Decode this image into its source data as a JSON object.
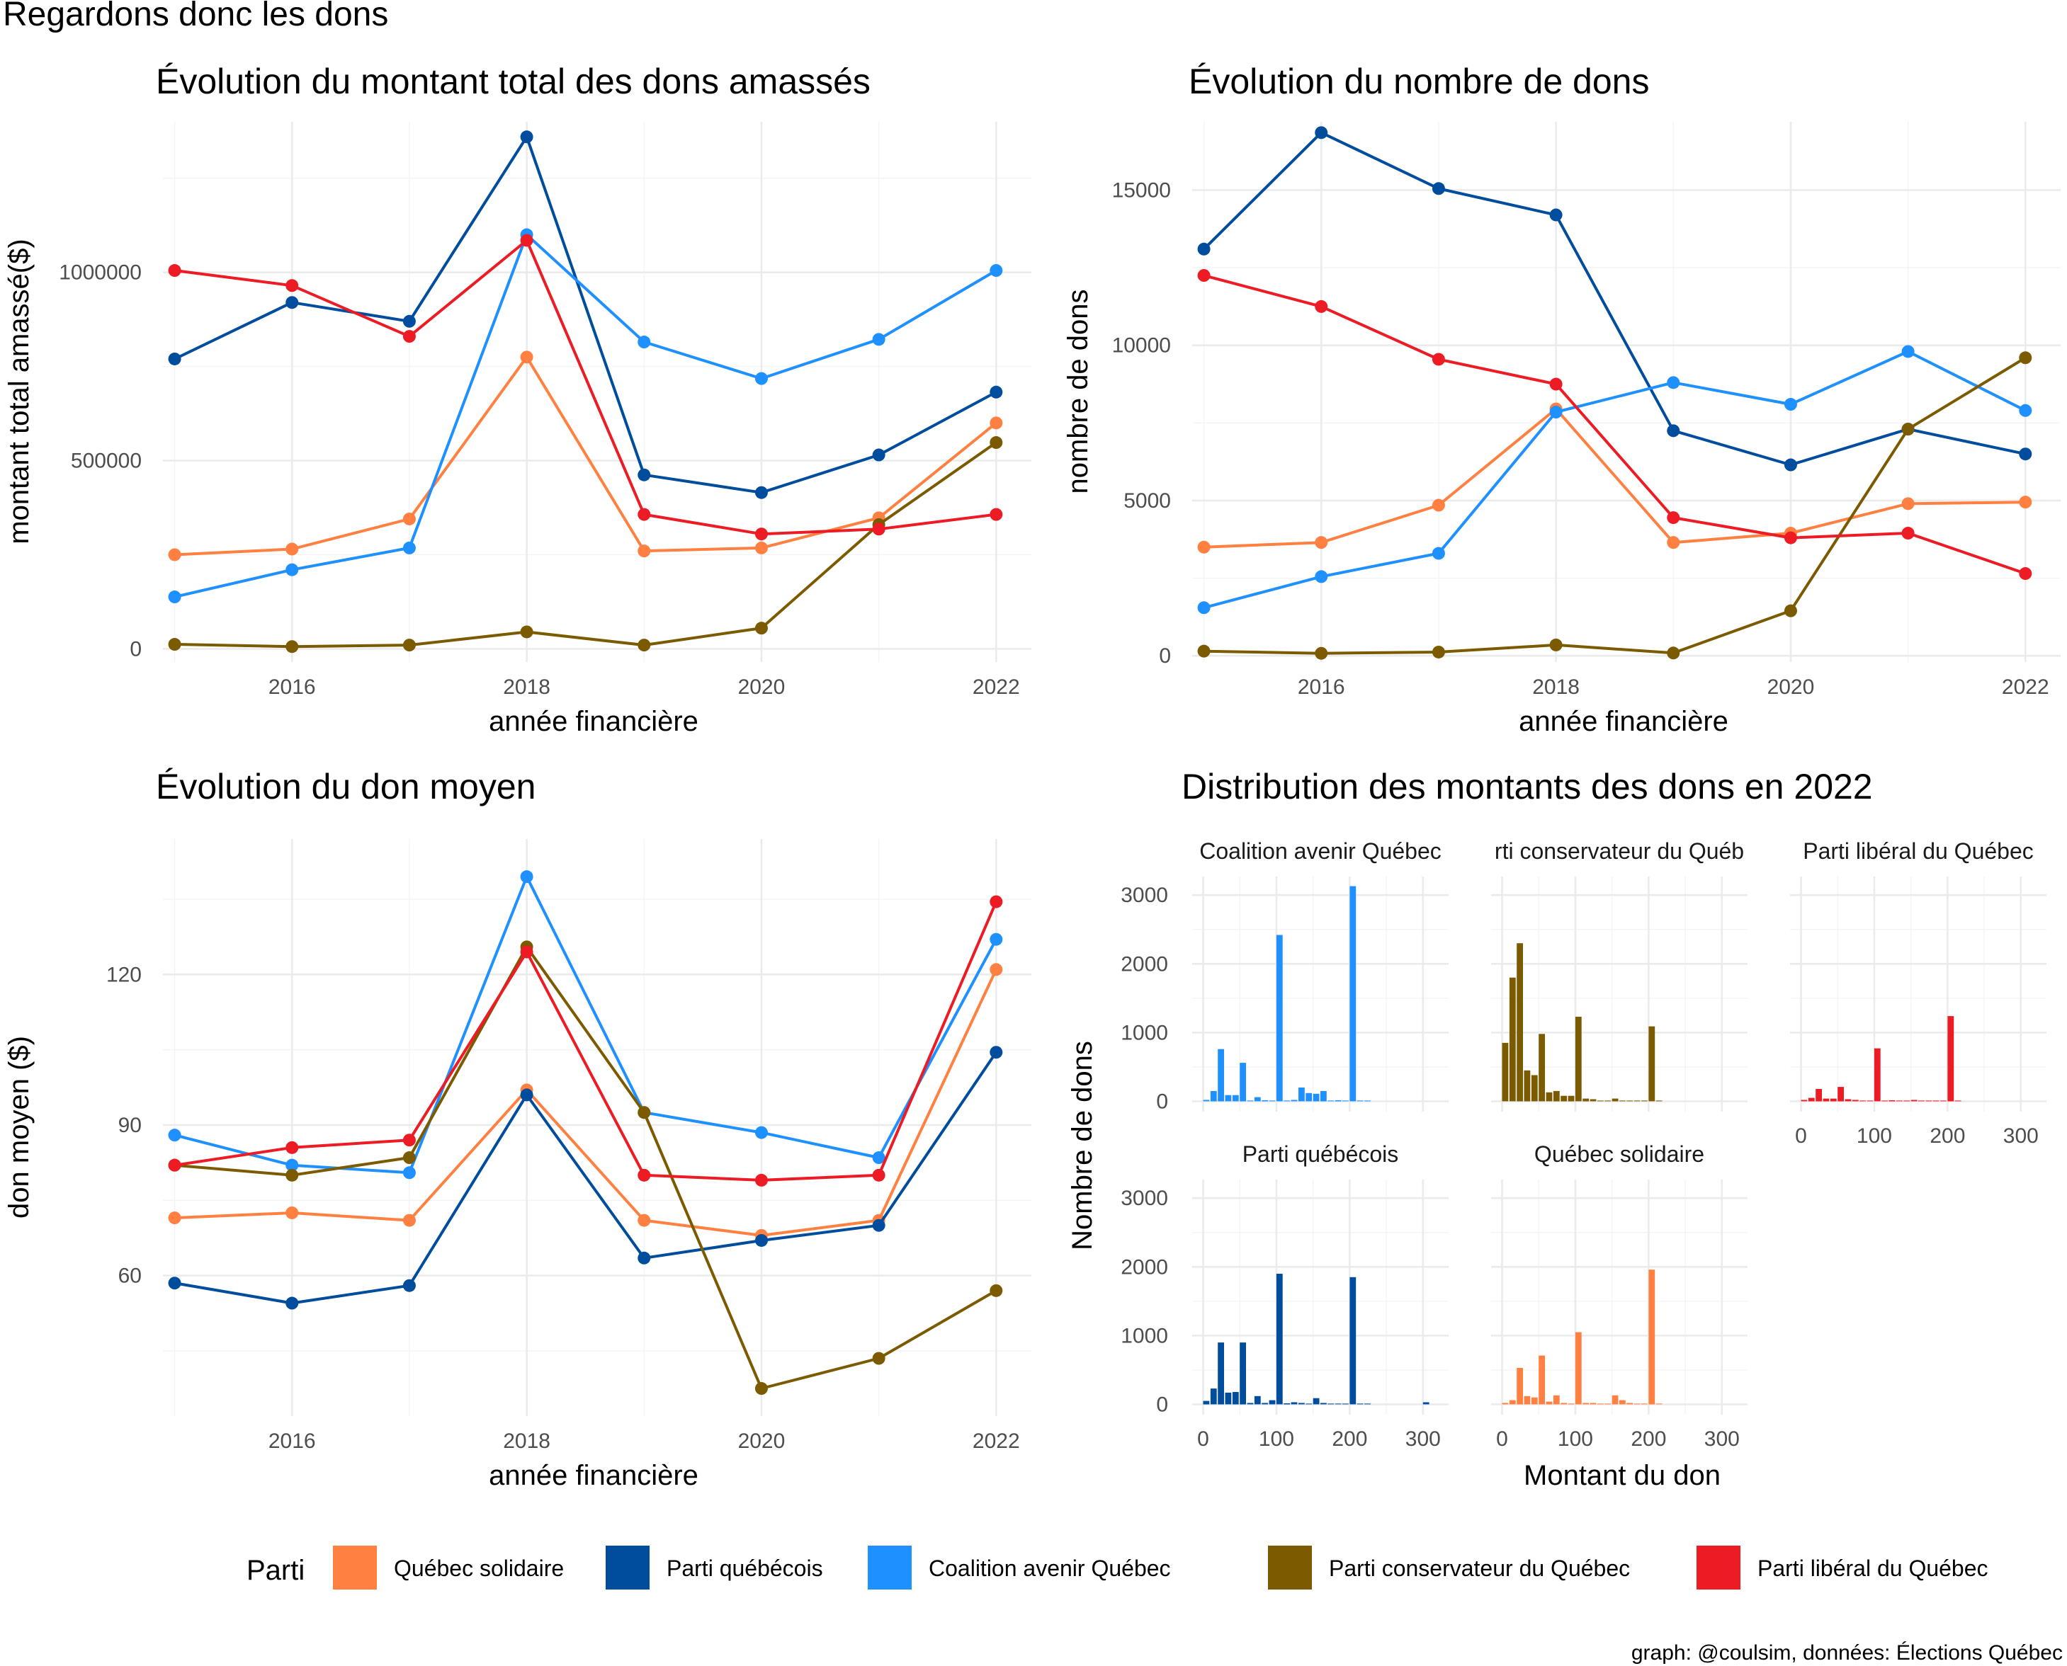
{
  "title": "Regardons donc les dons",
  "caption": "graph: @coulsim, données: Élections Québec",
  "colors": {
    "Québec solidaire": "#FF8040",
    "Parti québécois": "#004C9D",
    "Coalition avenir Québec": "#1E90FF",
    "Parti conservateur du Québec": "#7B5A00",
    "Parti libéral du Québec": "#ED1B24"
  },
  "legend": {
    "title": "Parti",
    "items": [
      "Québec solidaire",
      "Parti québécois",
      "Coalition avenir Québec",
      "Parti conservateur du Québec",
      "Parti libéral du Québec"
    ],
    "position": "bottom"
  },
  "chart_data": [
    {
      "id": "total",
      "type": "line",
      "title": "Évolution du montant total des dons amassés",
      "xlabel": "année financière",
      "ylabel": "montant total amassé($)",
      "x": [
        2015,
        2016,
        2017,
        2018,
        2019,
        2020,
        2021,
        2022
      ],
      "xlim": [
        2014.9,
        2022.3
      ],
      "ylim": [
        -35000,
        1400000
      ],
      "xticks": [
        2016,
        2018,
        2020,
        2022
      ],
      "yticks": [
        0,
        500000,
        1000000
      ],
      "yminor": [
        250000,
        750000,
        1250000
      ],
      "grid": true,
      "series": [
        {
          "name": "Québec solidaire",
          "values": [
            250000,
            265000,
            345000,
            775000,
            260000,
            268000,
            348000,
            600000
          ]
        },
        {
          "name": "Parti québécois",
          "values": [
            770000,
            920000,
            870000,
            1360000,
            462000,
            415000,
            515000,
            682000
          ]
        },
        {
          "name": "Coalition avenir Québec",
          "values": [
            138000,
            210000,
            268000,
            1100000,
            815000,
            718000,
            822000,
            1005000
          ]
        },
        {
          "name": "Parti conservateur du Québec",
          "values": [
            12000,
            6000,
            10000,
            45000,
            10000,
            55000,
            330000,
            548000
          ]
        },
        {
          "name": "Parti libéral du Québec",
          "values": [
            1005000,
            965000,
            830000,
            1085000,
            357000,
            305000,
            318000,
            357000
          ]
        }
      ]
    },
    {
      "id": "count",
      "type": "line",
      "title": "Évolution du nombre de dons",
      "xlabel": "année financière",
      "ylabel": "nombre de dons",
      "x": [
        2015,
        2016,
        2017,
        2018,
        2019,
        2020,
        2021,
        2022
      ],
      "xlim": [
        2014.9,
        2022.3
      ],
      "ylim": [
        -200,
        17200
      ],
      "xticks": [
        2016,
        2018,
        2020,
        2022
      ],
      "yticks": [
        0,
        5000,
        10000,
        15000
      ],
      "yminor": [
        2500,
        7500,
        12500
      ],
      "grid": true,
      "series": [
        {
          "name": "Québec solidaire",
          "values": [
            3500,
            3650,
            4850,
            7950,
            3650,
            3950,
            4900,
            4950
          ]
        },
        {
          "name": "Parti québécois",
          "values": [
            13100,
            16850,
            15050,
            14200,
            7250,
            6150,
            7300,
            6500
          ]
        },
        {
          "name": "Coalition avenir Québec",
          "values": [
            1550,
            2550,
            3300,
            7850,
            8800,
            8100,
            9800,
            7900
          ]
        },
        {
          "name": "Parti conservateur du Québec",
          "values": [
            150,
            80,
            120,
            350,
            90,
            1450,
            7300,
            9600
          ]
        },
        {
          "name": "Parti libéral du Québec",
          "values": [
            12250,
            11250,
            9550,
            8750,
            4450,
            3800,
            3950,
            2650
          ]
        }
      ]
    },
    {
      "id": "mean",
      "type": "line",
      "title": "Évolution du don moyen",
      "xlabel": "année financière",
      "ylabel": "don moyen ($)",
      "x": [
        2015,
        2016,
        2017,
        2018,
        2019,
        2020,
        2021,
        2022
      ],
      "xlim": [
        2014.9,
        2022.3
      ],
      "ylim": [
        32,
        147
      ],
      "xticks": [
        2016,
        2018,
        2020,
        2022
      ],
      "yticks": [
        60,
        90,
        120
      ],
      "yminor": [
        45,
        75,
        105,
        135
      ],
      "grid": true,
      "series": [
        {
          "name": "Québec solidaire",
          "values": [
            71.5,
            72.5,
            71,
            97,
            71,
            68,
            71,
            121
          ]
        },
        {
          "name": "Parti québécois",
          "values": [
            58.5,
            54.5,
            58,
            96,
            63.5,
            67,
            70,
            104.5
          ]
        },
        {
          "name": "Coalition avenir Québec",
          "values": [
            88,
            82,
            80.5,
            139.5,
            92.5,
            88.5,
            83.5,
            127
          ]
        },
        {
          "name": "Parti conservateur du Québec",
          "values": [
            82,
            80,
            83.5,
            125.5,
            92.5,
            37.5,
            43.5,
            57
          ]
        },
        {
          "name": "Parti libéral du Québec",
          "values": [
            82,
            85.5,
            87,
            124.5,
            80,
            79,
            80,
            134.5
          ]
        }
      ]
    },
    {
      "id": "dist",
      "type": "bar",
      "title": "Distribution des montants des dons en 2022",
      "xlabel": "Montant du don",
      "ylabel": "Nombre de dons",
      "xlim": [
        -15,
        335
      ],
      "ylim": [
        -150,
        3270
      ],
      "xticks": [
        0,
        100,
        200,
        300
      ],
      "yticks": [
        0,
        1000,
        2000,
        3000
      ],
      "bin_width": 10,
      "grid": true,
      "facets": [
        {
          "strip": "Coalition avenir Québec",
          "party": "Coalition avenir Québec",
          "bins": [
            [
              0,
              20
            ],
            [
              10,
              150
            ],
            [
              20,
              760
            ],
            [
              30,
              90
            ],
            [
              40,
              90
            ],
            [
              50,
              560
            ],
            [
              60,
              10
            ],
            [
              70,
              60
            ],
            [
              80,
              15
            ],
            [
              90,
              0
            ],
            [
              100,
              2420
            ],
            [
              110,
              10
            ],
            [
              120,
              20
            ],
            [
              130,
              200
            ],
            [
              140,
              120
            ],
            [
              150,
              110
            ],
            [
              160,
              150
            ],
            [
              170,
              10
            ],
            [
              180,
              15
            ],
            [
              190,
              0
            ],
            [
              200,
              3130
            ],
            [
              210,
              5
            ],
            [
              220,
              5
            ]
          ]
        },
        {
          "strip": "rti conservateur du Québ",
          "party": "Parti conservateur du Québec",
          "bins": [
            [
              0,
              850
            ],
            [
              10,
              1800
            ],
            [
              20,
              2300
            ],
            [
              30,
              450
            ],
            [
              40,
              380
            ],
            [
              50,
              980
            ],
            [
              60,
              130
            ],
            [
              70,
              150
            ],
            [
              80,
              80
            ],
            [
              90,
              80
            ],
            [
              100,
              1230
            ],
            [
              110,
              40
            ],
            [
              120,
              30
            ],
            [
              130,
              10
            ],
            [
              140,
              10
            ],
            [
              150,
              40
            ],
            [
              160,
              10
            ],
            [
              170,
              5
            ],
            [
              180,
              5
            ],
            [
              190,
              5
            ],
            [
              200,
              1090
            ],
            [
              210,
              5
            ]
          ]
        },
        {
          "strip": "Parti libéral du Québec",
          "party": "Parti libéral du Québec",
          "bins": [
            [
              0,
              20
            ],
            [
              10,
              50
            ],
            [
              20,
              180
            ],
            [
              30,
              40
            ],
            [
              40,
              40
            ],
            [
              50,
              210
            ],
            [
              60,
              30
            ],
            [
              70,
              20
            ],
            [
              80,
              10
            ],
            [
              90,
              5
            ],
            [
              100,
              770
            ],
            [
              110,
              10
            ],
            [
              120,
              15
            ],
            [
              130,
              5
            ],
            [
              140,
              5
            ],
            [
              150,
              20
            ],
            [
              160,
              5
            ],
            [
              170,
              5
            ],
            [
              180,
              5
            ],
            [
              190,
              0
            ],
            [
              200,
              1240
            ],
            [
              210,
              5
            ]
          ]
        },
        {
          "strip": "Parti québécois",
          "party": "Parti québécois",
          "bins": [
            [
              0,
              50
            ],
            [
              10,
              230
            ],
            [
              20,
              900
            ],
            [
              30,
              170
            ],
            [
              40,
              180
            ],
            [
              50,
              900
            ],
            [
              60,
              20
            ],
            [
              70,
              120
            ],
            [
              80,
              20
            ],
            [
              90,
              60
            ],
            [
              100,
              1900
            ],
            [
              110,
              15
            ],
            [
              120,
              30
            ],
            [
              130,
              20
            ],
            [
              140,
              10
            ],
            [
              150,
              90
            ],
            [
              160,
              20
            ],
            [
              170,
              10
            ],
            [
              180,
              10
            ],
            [
              190,
              5
            ],
            [
              200,
              1850
            ],
            [
              210,
              10
            ],
            [
              220,
              5
            ],
            [
              300,
              30
            ]
          ]
        },
        {
          "strip": "Québec solidaire",
          "party": "Québec solidaire",
          "bins": [
            [
              0,
              20
            ],
            [
              10,
              60
            ],
            [
              20,
              530
            ],
            [
              30,
              120
            ],
            [
              40,
              100
            ],
            [
              50,
              710
            ],
            [
              60,
              40
            ],
            [
              70,
              130
            ],
            [
              80,
              20
            ],
            [
              90,
              10
            ],
            [
              100,
              1050
            ],
            [
              110,
              20
            ],
            [
              120,
              20
            ],
            [
              130,
              10
            ],
            [
              140,
              10
            ],
            [
              150,
              130
            ],
            [
              160,
              60
            ],
            [
              170,
              20
            ],
            [
              180,
              10
            ],
            [
              190,
              10
            ],
            [
              200,
              1960
            ],
            [
              210,
              10
            ]
          ]
        }
      ]
    }
  ]
}
